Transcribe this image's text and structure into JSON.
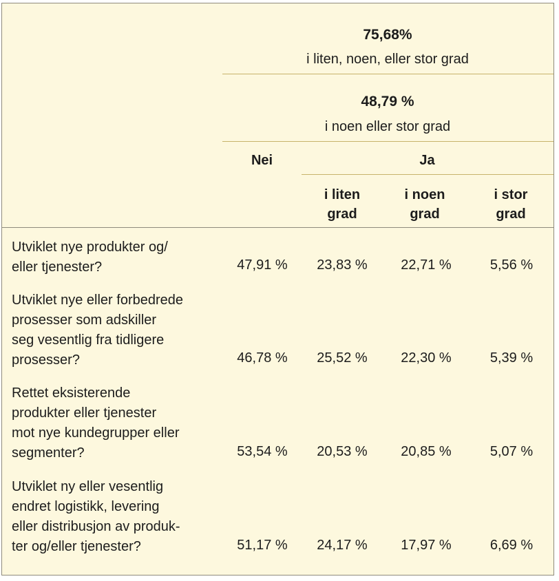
{
  "header": {
    "group1": {
      "value": "75,68%",
      "label": "i liten, noen, eller stor grad"
    },
    "group2": {
      "value": "48,79 %",
      "label": "i noen eller stor grad"
    },
    "no_label": "Nei",
    "yes_label": "Ja",
    "sub_columns": [
      {
        "line1": "i liten",
        "line2": "grad"
      },
      {
        "line1": "i noen",
        "line2": "grad"
      },
      {
        "line1": "i stor",
        "line2": "grad"
      }
    ]
  },
  "rows": [
    {
      "question": [
        "Utviklet nye produkter og/",
        "eller tjenester?"
      ],
      "values": [
        "47,91 %",
        "23,83 %",
        "22,71 %",
        "5,56 %"
      ]
    },
    {
      "question": [
        "Utviklet nye eller forbedrede",
        "prosesser som adskiller",
        "seg vesentlig fra tidligere",
        "prosesser?"
      ],
      "values": [
        "46,78 %",
        "25,52 %",
        "22,30 %",
        "5,39 %"
      ]
    },
    {
      "question": [
        "Rettet eksisterende",
        "produkter eller tjenester",
        "mot nye kundegrupper eller",
        "segmenter?"
      ],
      "values": [
        "53,54 %",
        "20,53 %",
        "20,85 %",
        "5,07 %"
      ]
    },
    {
      "question": [
        "Utviklet ny eller vesentlig",
        "endret logistikk, levering",
        "eller distribusjon av produk-",
        "ter og/eller tjenester?"
      ],
      "values": [
        "51,17 %",
        "24,17 %",
        "17,97 %",
        "6,69 %"
      ]
    }
  ]
}
